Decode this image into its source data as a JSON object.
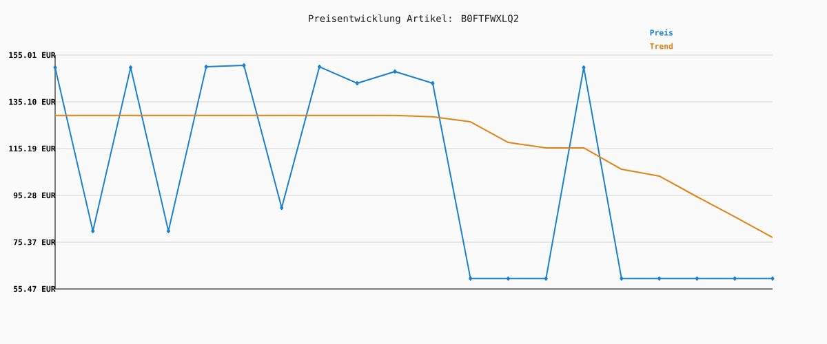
{
  "chart_data": {
    "type": "line",
    "title": "Preisentwicklung Artikel: B0FTFWXLQ2",
    "categories": [
      null,
      null,
      null,
      null,
      null,
      null,
      null,
      null,
      null,
      null,
      null,
      null,
      null,
      null,
      null,
      null,
      null,
      null,
      null,
      null
    ],
    "series": [
      {
        "name": "Preis",
        "color": "#1a7fcf",
        "marker": "diamond",
        "values": [
          149.7,
          80.1,
          149.7,
          80.1,
          150.0,
          150.6,
          90.0,
          150.0,
          143.0,
          148.0,
          143.0,
          59.9,
          59.9,
          59.9,
          149.7,
          59.9,
          59.9,
          59.9,
          59.9,
          59.9
        ]
      },
      {
        "name": "Trend",
        "color": "#e08214",
        "marker": "none",
        "values": [
          129.3,
          129.3,
          129.3,
          129.3,
          129.3,
          129.3,
          129.3,
          129.3,
          129.3,
          129.3,
          128.7,
          126.6,
          117.8,
          115.5,
          115.5,
          106.4,
          103.5,
          94.7,
          86.2,
          77.4
        ]
      }
    ],
    "ylim": [
      55.47,
      155.01
    ],
    "yticks": [
      {
        "value": 55.47,
        "label": "55.47 EUR"
      },
      {
        "value": 75.37,
        "label": "75.37 EUR"
      },
      {
        "value": 95.28,
        "label": "95.28 EUR"
      },
      {
        "value": 115.19,
        "label": "115.19 EUR"
      },
      {
        "value": 135.1,
        "label": "135.10 EUR"
      },
      {
        "value": 155.01,
        "label": "155.01 EUR"
      }
    ],
    "grid": "y",
    "legend": "top right",
    "tick_labels": "y",
    "line_style": "solid"
  }
}
